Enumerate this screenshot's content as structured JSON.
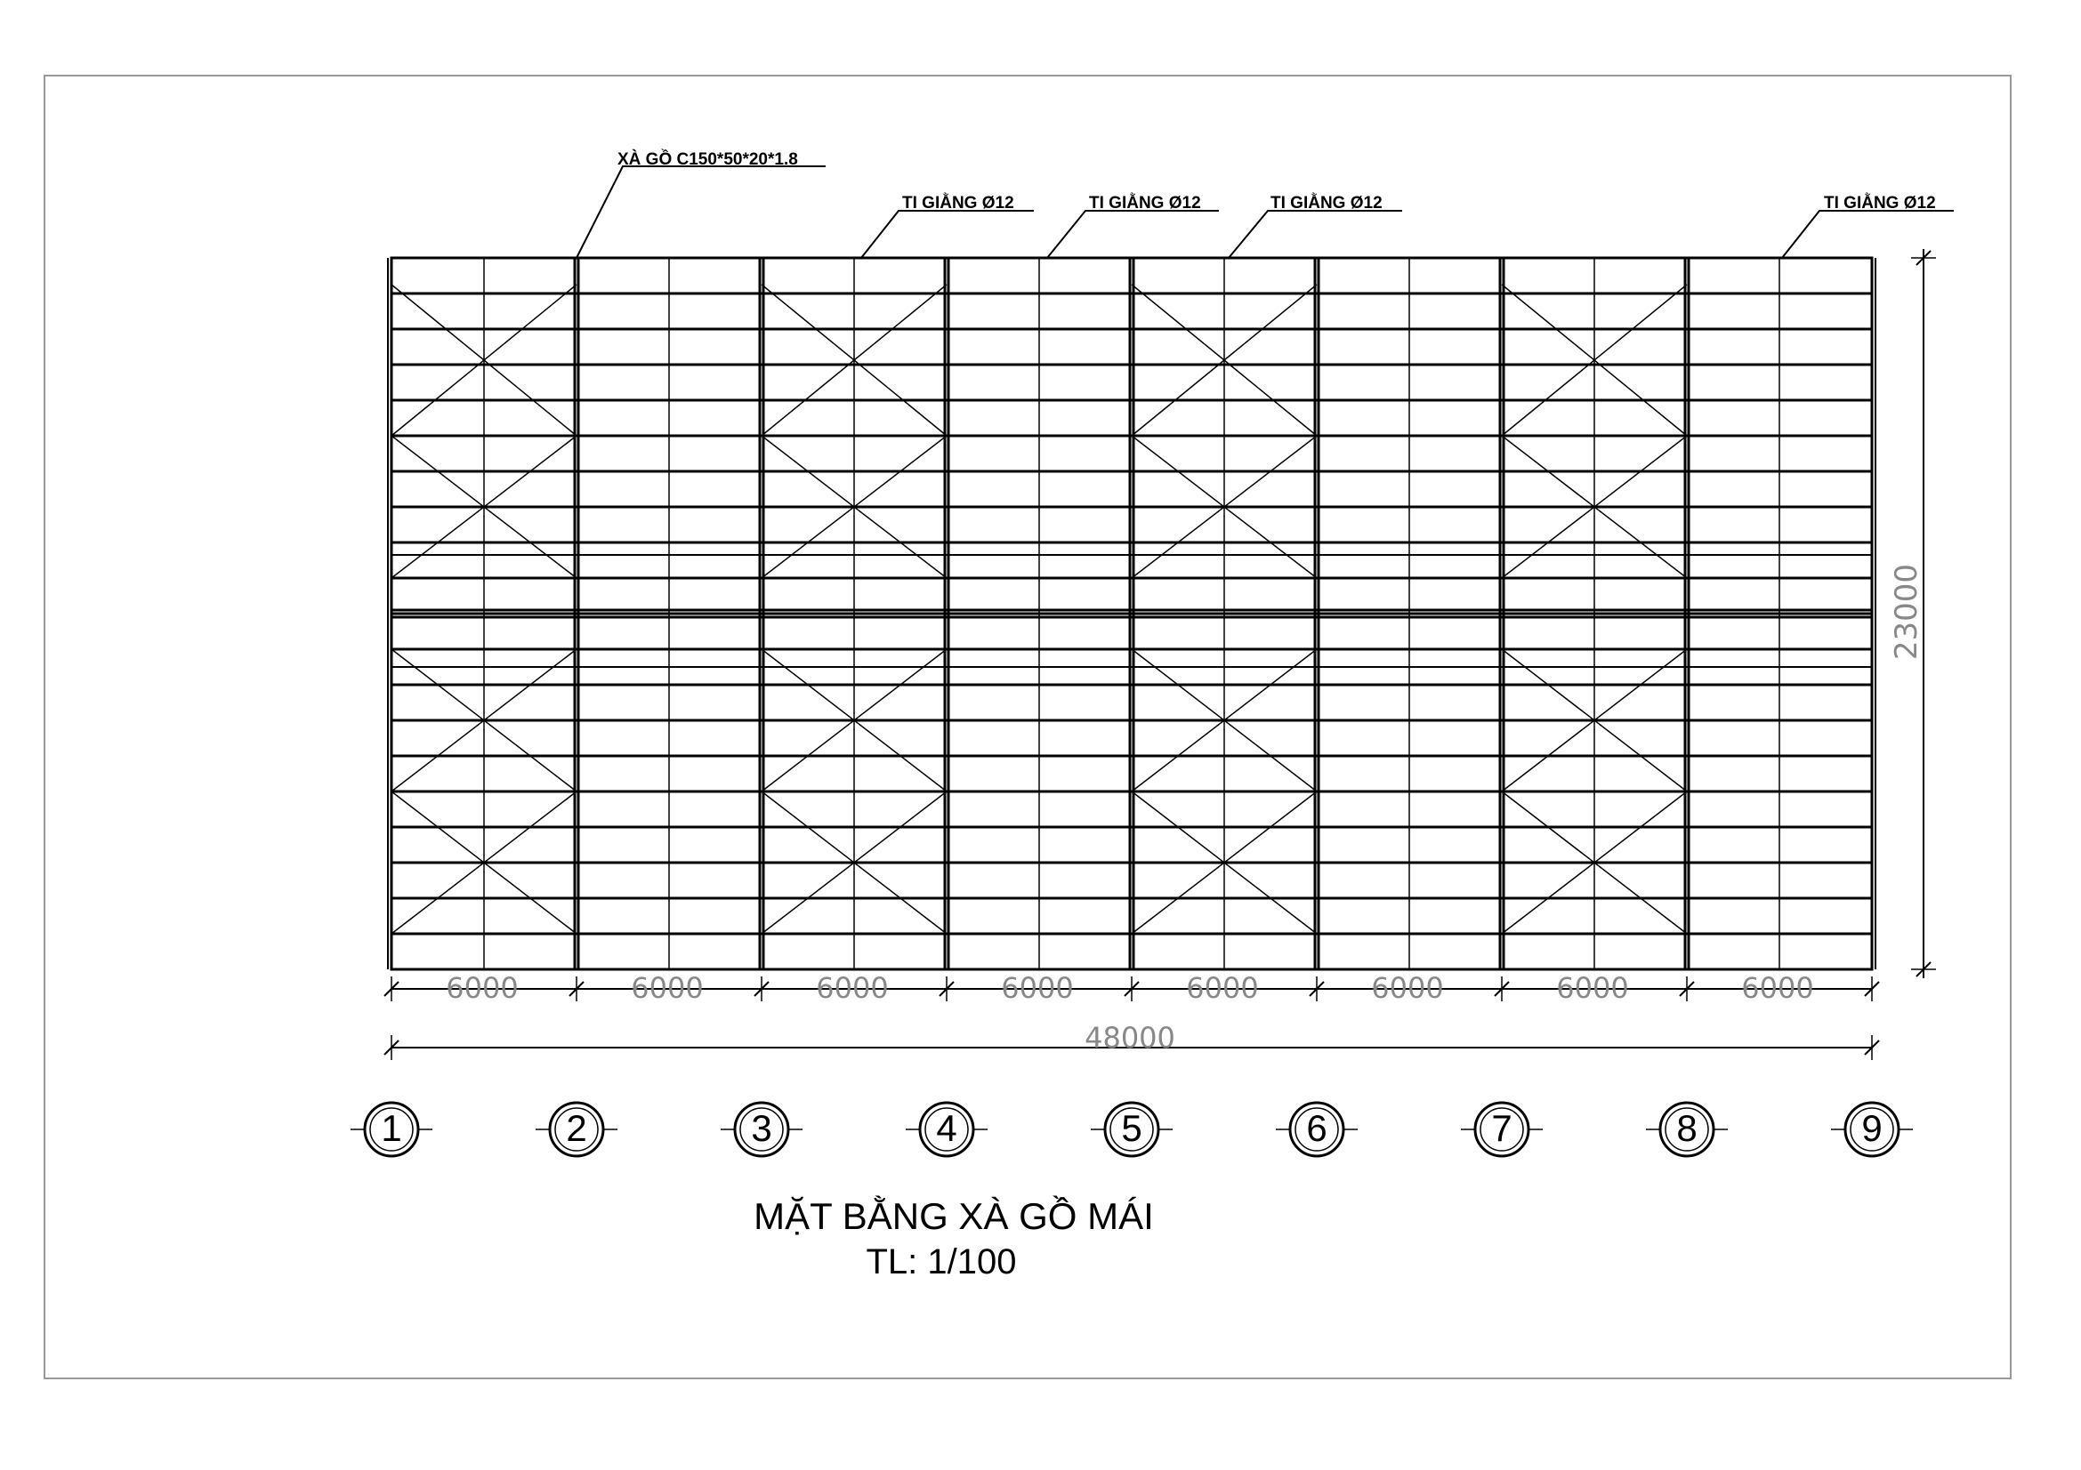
{
  "callouts": [
    {
      "id": "purlin",
      "text": "XÀ GỒ C150*50*20*1.8"
    },
    {
      "id": "rod-1",
      "text": "TI GIẰNG Ø12"
    },
    {
      "id": "rod-2",
      "text": "TI GIẰNG Ø12"
    },
    {
      "id": "rod-3",
      "text": "TI GIẰNG Ø12"
    },
    {
      "id": "rod-4",
      "text": "TI GIẰNG Ø12"
    }
  ],
  "dimensions": {
    "bays": [
      "6000",
      "6000",
      "6000",
      "6000",
      "6000",
      "6000",
      "6000",
      "6000"
    ],
    "total_length": "48000",
    "depth": "23000"
  },
  "axes": [
    "1",
    "2",
    "3",
    "4",
    "5",
    "6",
    "7",
    "8",
    "9"
  ],
  "title": {
    "main": "MẶT BẰNG XÀ GỒ MÁI",
    "scale": "TL: 1/100"
  }
}
